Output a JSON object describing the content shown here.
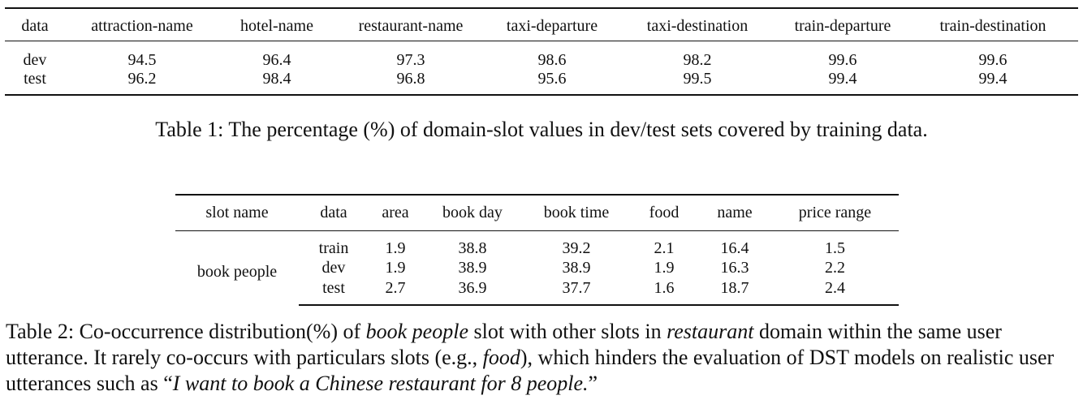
{
  "table1": {
    "headers": [
      "data",
      "attraction-name",
      "hotel-name",
      "restaurant-name",
      "taxi-departure",
      "taxi-destination",
      "train-departure",
      "train-destination"
    ],
    "rows": [
      [
        "dev",
        "94.5",
        "96.4",
        "97.3",
        "98.6",
        "98.2",
        "99.6",
        "99.6"
      ],
      [
        "test",
        "96.2",
        "98.4",
        "96.8",
        "95.6",
        "99.5",
        "99.4",
        "99.4"
      ]
    ],
    "caption_label": "Table 1:",
    "caption_text": "The percentage (%) of domain-slot values in dev/test sets covered by training data."
  },
  "table2": {
    "headers": [
      "slot name",
      "data",
      "area",
      "book day",
      "book time",
      "food",
      "name",
      "price range"
    ],
    "row_group_label": "book people",
    "rows": [
      [
        "train",
        "1.9",
        "38.8",
        "39.2",
        "2.1",
        "16.4",
        "1.5"
      ],
      [
        "dev",
        "1.9",
        "38.9",
        "38.9",
        "1.9",
        "16.3",
        "2.2"
      ],
      [
        "test",
        "2.7",
        "36.9",
        "37.7",
        "1.6",
        "18.7",
        "2.4"
      ]
    ],
    "caption": {
      "label": "Table 2:",
      "part1": "Co-occurrence distribution(%) of",
      "em1": "book people",
      "part2": "slot with other slots in",
      "em2": "restaurant",
      "part3": "domain within the same user utterance. It rarely co-occurs with particulars slots (e.g.,",
      "em3": "food",
      "part4": "), which hinders the evaluation of DST models on realistic user utterances such as “",
      "em4": "I want to book a Chinese restaurant for 8 people.",
      "part5": "”"
    }
  }
}
